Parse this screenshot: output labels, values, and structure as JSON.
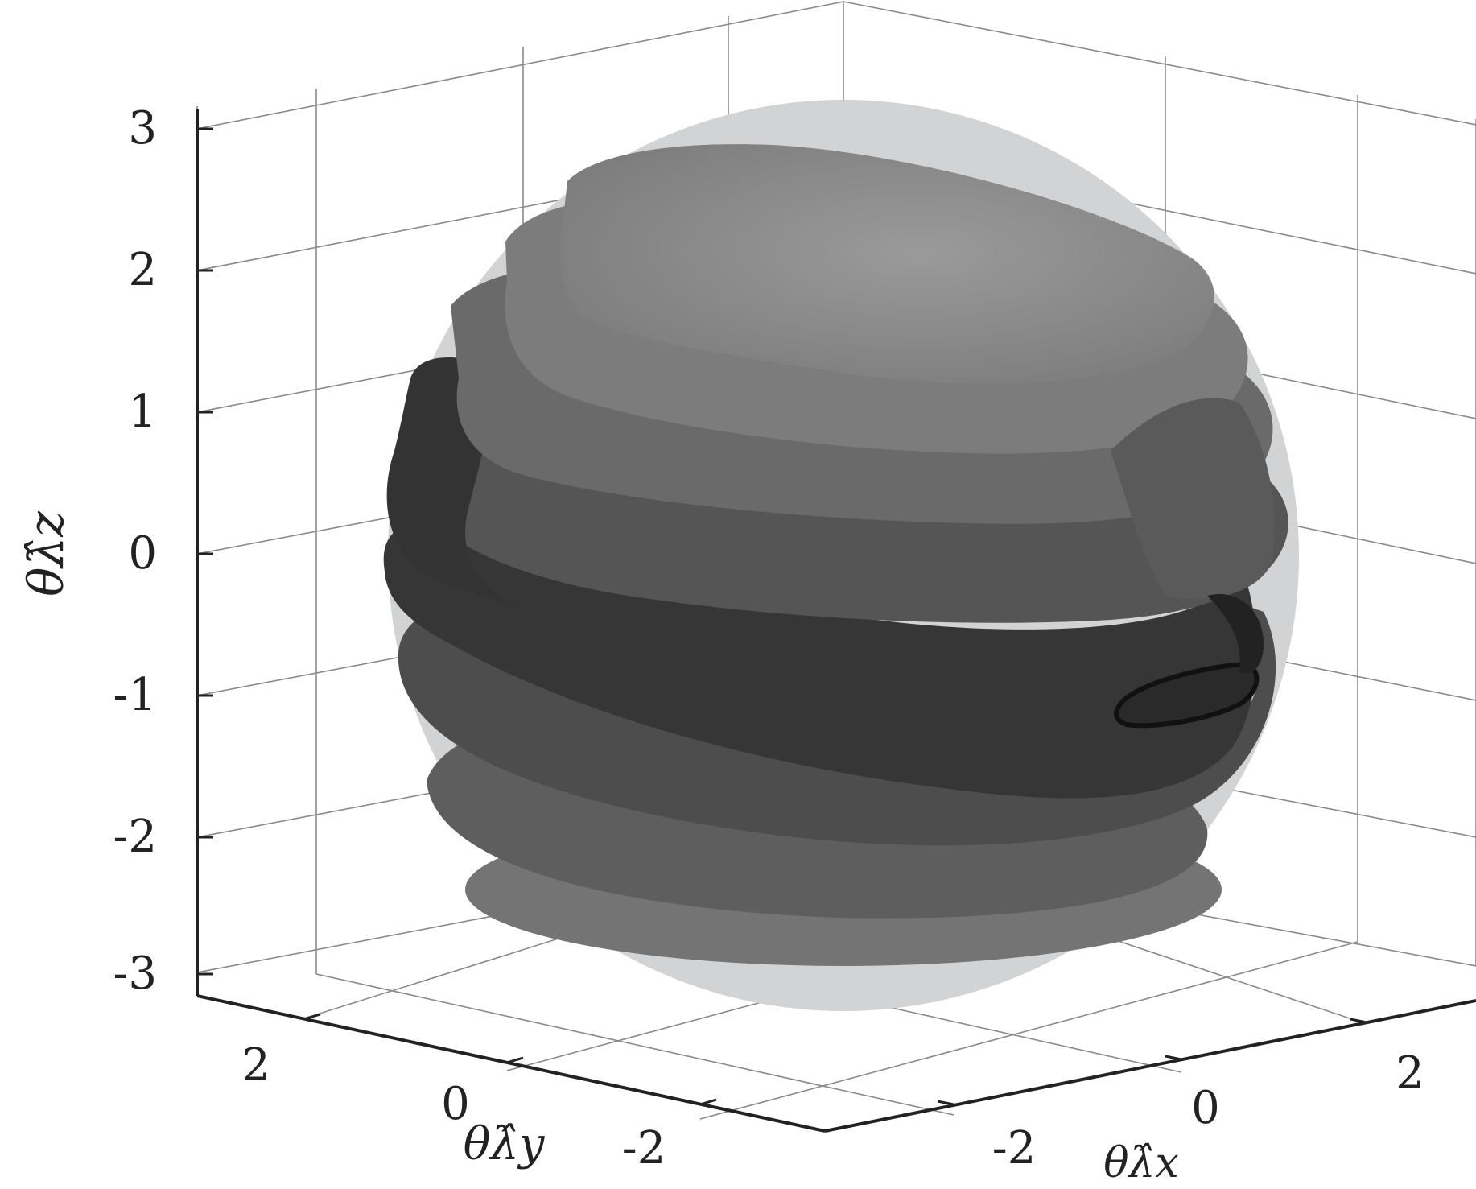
{
  "chart_data": {
    "type": "surface3d",
    "title": "",
    "xlabel": "θλ̂x",
    "ylabel": "θλ̂y",
    "zlabel": "θλ̂z",
    "x_ticks": [
      "-2",
      "0",
      "2"
    ],
    "y_ticks": [
      "2",
      "0",
      "-2"
    ],
    "z_ticks": [
      "3",
      "2",
      "1",
      "0",
      "-1",
      "-2",
      "-3"
    ],
    "xlim": [
      -3.2,
      3.2
    ],
    "ylim": [
      -3.2,
      3.2
    ],
    "zlim": [
      -3.2,
      3.2
    ],
    "grid": true,
    "colors": {
      "sphere": "#d2d3d5",
      "band_top": "#8a8a8a",
      "band_dark": "#353535",
      "band_bottom": "#6e6e6e"
    },
    "description_series": [
      {
        "name": "",
        "values": [
          3.14
        ]
      }
    ]
  }
}
